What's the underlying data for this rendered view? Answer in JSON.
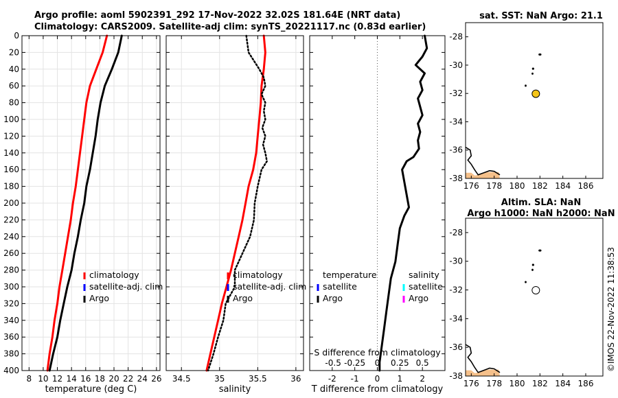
{
  "title_line1": "Argo profile: aoml 5902391_292 17-Nov-2022 32.02S 181.64E (NRT data)",
  "title_line2": "Climatology: CARS2009. Satellite-adj clim: synTS_20221117.nc (0.83d earlier)",
  "stamp": "©IMOS 22-Nov-2022 11:38:53",
  "colors": {
    "argo": "#000000",
    "climatology": "#ff0000",
    "satellite_adj": "#0000ff",
    "sat_salinity": "#00ffff",
    "argo_salinity": "#ff00ff",
    "land": "#f5c08a",
    "marker": "#f5c518"
  },
  "chart_data": [
    {
      "id": "temperature",
      "type": "line",
      "xlabel": "temperature (deg C)",
      "ylabel": "",
      "xlim": [
        7,
        26.5
      ],
      "ylim": [
        400,
        0
      ],
      "x_ticks": [
        8,
        10,
        12,
        14,
        16,
        18,
        20,
        22,
        24,
        26
      ],
      "y_ticks": [
        0,
        20,
        40,
        60,
        80,
        100,
        120,
        140,
        160,
        180,
        200,
        220,
        240,
        260,
        280,
        300,
        320,
        340,
        360,
        380,
        400
      ],
      "grid": true,
      "legend": {
        "position": "right",
        "entries": [
          "climatology",
          "satellite-adj. clim",
          "Argo"
        ]
      },
      "series": [
        {
          "name": "climatology",
          "style": "solid",
          "depth": [
            0,
            20,
            40,
            60,
            80,
            100,
            120,
            140,
            160,
            180,
            200,
            220,
            240,
            260,
            280,
            300,
            320,
            340,
            360,
            380,
            400
          ],
          "values": [
            19.0,
            18.4,
            17.5,
            16.6,
            16.1,
            15.8,
            15.5,
            15.2,
            14.9,
            14.6,
            14.2,
            13.9,
            13.5,
            13.1,
            12.7,
            12.3,
            12.0,
            11.6,
            11.3,
            10.9,
            10.6
          ]
        },
        {
          "name": "Argo",
          "style": "solid",
          "depth": [
            0,
            20,
            40,
            60,
            80,
            100,
            120,
            140,
            160,
            180,
            200,
            220,
            240,
            260,
            280,
            300,
            320,
            340,
            360,
            380,
            400
          ],
          "values": [
            21.1,
            20.6,
            19.7,
            18.7,
            18.1,
            17.7,
            17.4,
            17.0,
            16.6,
            16.1,
            15.8,
            15.3,
            14.9,
            14.4,
            14.0,
            13.4,
            12.9,
            12.4,
            12.0,
            11.4,
            10.9
          ]
        }
      ]
    },
    {
      "id": "salinity",
      "type": "line",
      "xlabel": "salinity",
      "ylabel": "",
      "xlim": [
        34.3,
        36.1
      ],
      "ylim": [
        400,
        0
      ],
      "x_ticks": [
        34.5,
        35,
        35.5,
        36
      ],
      "grid": true,
      "legend": {
        "position": "right",
        "entries": [
          "climatology",
          "satellite-adj. clim",
          "Argo"
        ]
      },
      "series": [
        {
          "name": "climatology",
          "style": "solid",
          "depth": [
            0,
            20,
            40,
            60,
            80,
            100,
            120,
            140,
            160,
            180,
            200,
            220,
            240,
            260,
            280,
            300,
            320,
            340,
            360,
            380,
            400
          ],
          "values": [
            35.58,
            35.6,
            35.58,
            35.55,
            35.54,
            35.52,
            35.5,
            35.48,
            35.44,
            35.38,
            35.34,
            35.3,
            35.25,
            35.2,
            35.15,
            35.09,
            35.03,
            34.98,
            34.93,
            34.88,
            34.83
          ]
        },
        {
          "name": "Argo",
          "style": "dotted",
          "depth": [
            0,
            20,
            40,
            50,
            60,
            70,
            80,
            90,
            100,
            110,
            120,
            130,
            140,
            150,
            160,
            180,
            200,
            220,
            240,
            260,
            280,
            300,
            320,
            340,
            360,
            380,
            400
          ],
          "values": [
            35.35,
            35.38,
            35.52,
            35.58,
            35.6,
            35.55,
            35.6,
            35.58,
            35.6,
            35.56,
            35.6,
            35.57,
            35.6,
            35.62,
            35.55,
            35.5,
            35.46,
            35.45,
            35.4,
            35.3,
            35.2,
            35.2,
            35.08,
            35.05,
            34.98,
            34.92,
            34.85
          ]
        }
      ]
    },
    {
      "id": "difference",
      "type": "line",
      "xlabel": "T difference from climatology",
      "xlabel2": "S difference from climatology",
      "ylabel": "",
      "xlim": [
        -3,
        3
      ],
      "ylim": [
        400,
        0
      ],
      "x_ticks": [
        -2,
        -1,
        0,
        1,
        2
      ],
      "x2_ticks": [
        "-0.5",
        "-0.25",
        "0",
        "0.25",
        "0.5"
      ],
      "grid": false,
      "legend": {
        "position": "right",
        "groups": [
          {
            "title": "temperature",
            "entries": [
              "satellite",
              "Argo"
            ]
          },
          {
            "title": "salinity",
            "entries": [
              "satellite",
              "Argo"
            ]
          }
        ]
      },
      "series": [
        {
          "name": "Argo T difference",
          "style": "solid",
          "depth": [
            0,
            15,
            25,
            35,
            45,
            55,
            65,
            75,
            85,
            95,
            105,
            115,
            125,
            135,
            145,
            150,
            155,
            160,
            175,
            190,
            205,
            215,
            230,
            250,
            270,
            290,
            310,
            330,
            350,
            370,
            390,
            400
          ],
          "values": [
            2.1,
            2.2,
            2.0,
            1.7,
            2.1,
            1.9,
            2.0,
            1.8,
            1.9,
            2.0,
            1.8,
            1.9,
            1.8,
            1.85,
            1.6,
            1.3,
            1.2,
            1.1,
            1.2,
            1.3,
            1.4,
            1.2,
            1.0,
            0.9,
            0.8,
            0.6,
            0.5,
            0.4,
            0.3,
            0.2,
            0.1,
            0.1
          ]
        }
      ]
    },
    {
      "id": "map_sst",
      "type": "scatter",
      "title": "sat. SST: NaN Argo: 21.1",
      "xlim": [
        175.5,
        187.5
      ],
      "ylim": [
        -38,
        -27
      ],
      "x_ticks": [
        176,
        178,
        180,
        182,
        184,
        186
      ],
      "y_ticks": [
        -28,
        -30,
        -32,
        -34,
        -36,
        -38
      ],
      "marker": {
        "lon": 181.64,
        "lat": -32.02,
        "fill": "#f5c518"
      }
    },
    {
      "id": "map_sla",
      "type": "scatter",
      "title": "Altim. SLA: NaN",
      "title2": "Argo h1000: NaN h2000: NaN",
      "xlim": [
        175.5,
        187.5
      ],
      "ylim": [
        -38,
        -27
      ],
      "x_ticks": [
        176,
        178,
        180,
        182,
        184,
        186
      ],
      "y_ticks": [
        -28,
        -30,
        -32,
        -34,
        -36,
        -38
      ],
      "marker": {
        "lon": 181.64,
        "lat": -32.02,
        "fill": "#ffffff"
      }
    }
  ]
}
